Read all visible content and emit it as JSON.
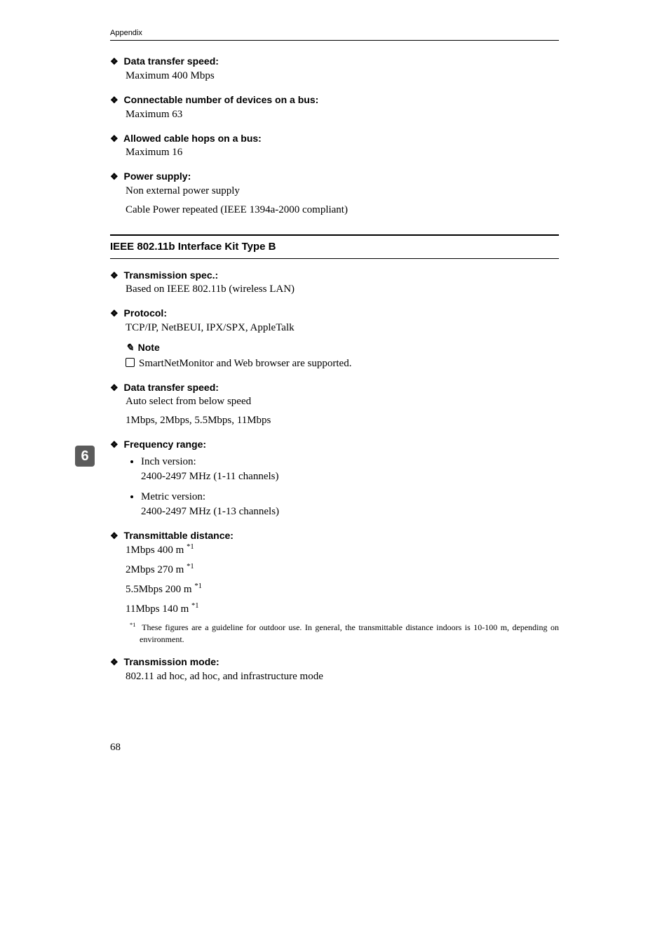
{
  "header": "Appendix",
  "sideTab": "6",
  "pageNumber": "68",
  "items1": [
    {
      "heading": "Data transfer speed:",
      "body": "Maximum 400 Mbps"
    },
    {
      "heading": "Connectable number of devices on a bus:",
      "body": "Maximum 63"
    },
    {
      "heading": "Allowed cable hops on a bus:",
      "body": "Maximum 16"
    },
    {
      "heading": "Power supply:",
      "body": "Non external power supply",
      "body2": "Cable Power repeated (IEEE 1394a-2000 compliant)"
    }
  ],
  "sectionTitle": "IEEE 802.11b Interface Kit Type B",
  "items2": {
    "transmission": {
      "heading": "Transmission spec.:",
      "body": "Based on IEEE 802.11b (wireless LAN)"
    },
    "protocol": {
      "heading": "Protocol:",
      "body": "TCP/IP, NetBEUI, IPX/SPX, AppleTalk"
    },
    "noteLabel": "Note",
    "noteBody": "SmartNetMonitor and Web browser are supported.",
    "dataSpeed": {
      "heading": "Data transfer speed:",
      "body": "Auto select from below speed",
      "body2": "1Mbps, 2Mbps, 5.5Mbps, 11Mbps"
    },
    "freqHeading": "Frequency range:",
    "freqBullets": [
      {
        "title": "Inch version:",
        "text": "2400-2497 MHz (1-11 channels)"
      },
      {
        "title": "Metric version:",
        "text": "2400-2497 MHz (1-13 channels)"
      }
    ],
    "transDist": {
      "heading": "Transmittable distance:",
      "lines": [
        "1Mbps 400 m",
        "2Mbps 270 m",
        "5.5Mbps 200 m",
        "11Mbps 140 m"
      ],
      "sup": "*1",
      "footnote": "These figures are a guideline for outdoor use. In general, the transmittable distance indoors is 10-100 m, depending on environment."
    },
    "transMode": {
      "heading": "Transmission mode:",
      "body": "802.11 ad hoc, ad hoc, and infrastructure mode"
    }
  }
}
